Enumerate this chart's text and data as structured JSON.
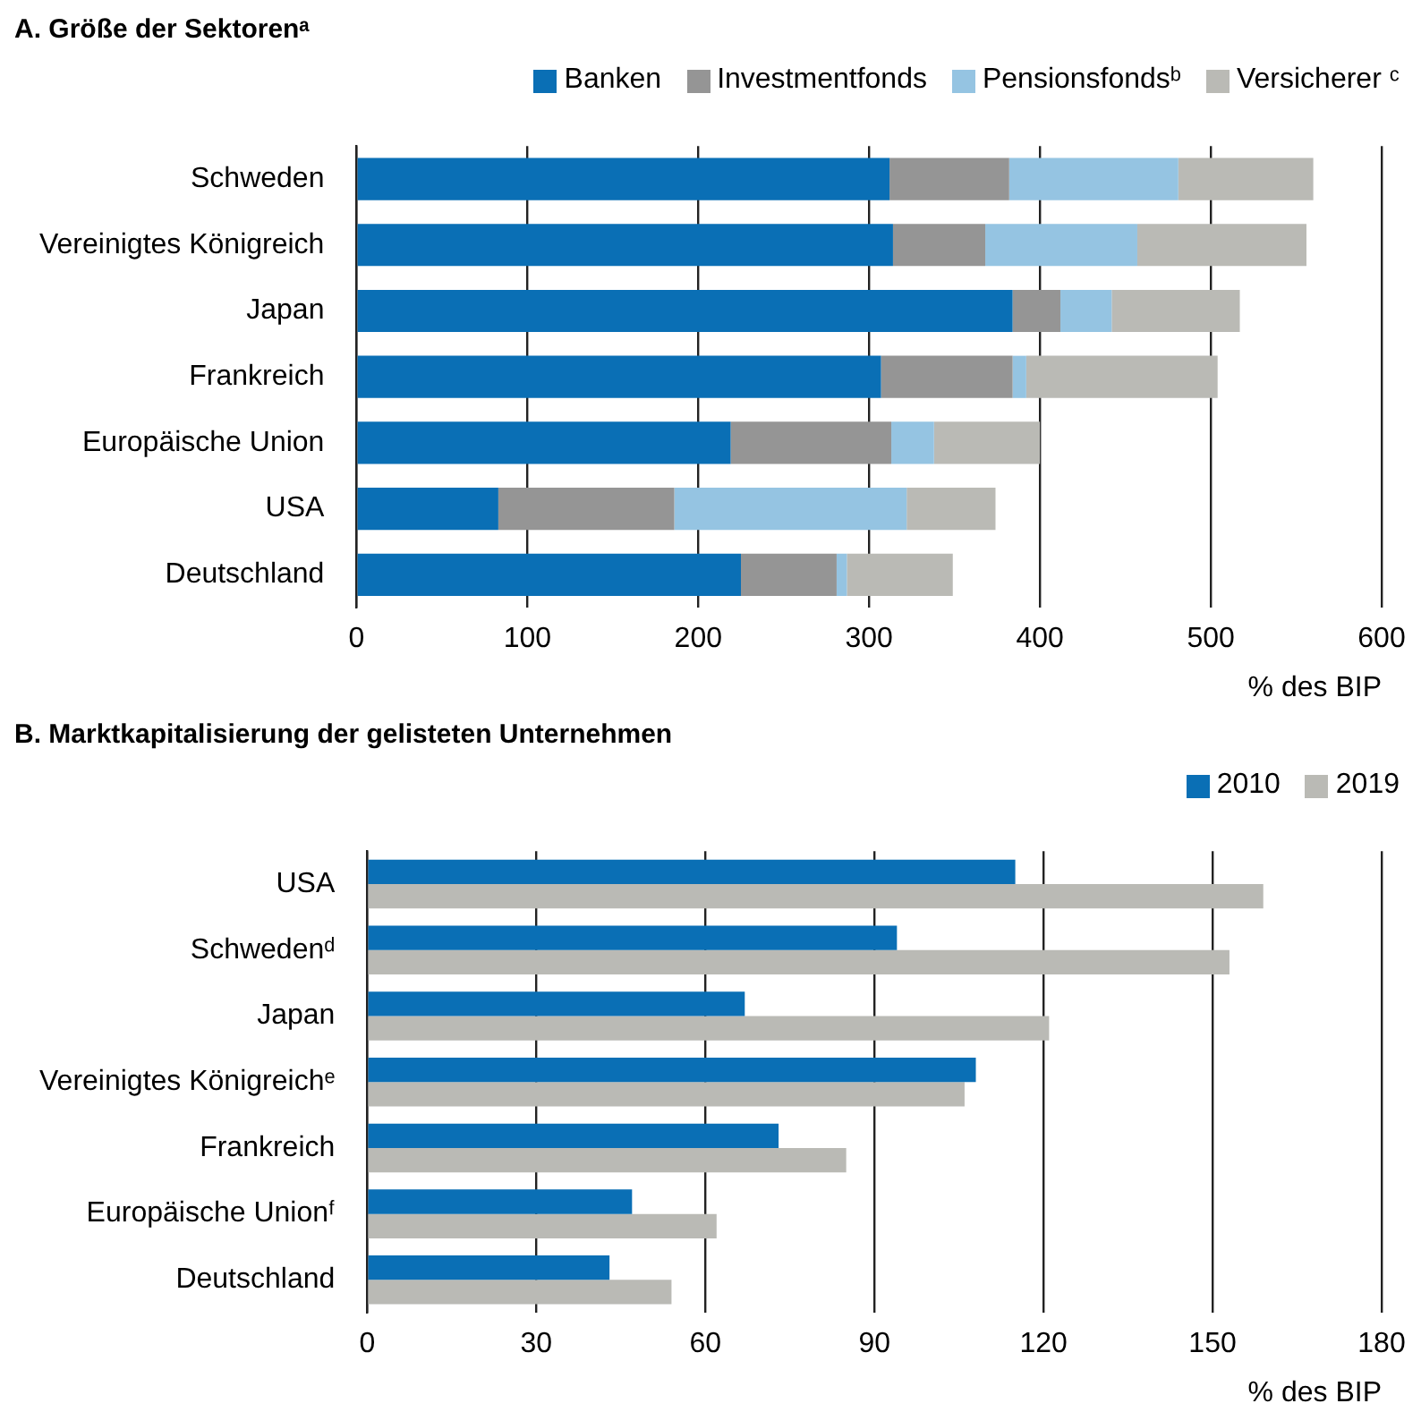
{
  "chart_data": [
    {
      "type": "bar",
      "title": "A. Größe der Sektorenᵃ",
      "orientation": "horizontal",
      "stacked": true,
      "categories": [
        "Schweden",
        "Vereinigtes Königreich",
        "Japan",
        "Frankreich",
        "Europäische Union",
        "USA",
        "Deutschland"
      ],
      "series": [
        {
          "name": "Banken",
          "color": "#0a6fb5",
          "values": [
            312,
            314,
            384,
            307,
            219,
            83,
            225
          ]
        },
        {
          "name": "Investmentfonds",
          "color": "#959595",
          "values": [
            70,
            54,
            28,
            77,
            94,
            103,
            56
          ]
        },
        {
          "name": "Pensionsfondsᵇ",
          "color": "#95c4e2",
          "values": [
            99,
            89,
            30,
            8,
            25,
            136,
            6
          ]
        },
        {
          "name": "Versicherer ᶜ",
          "color": "#babab5",
          "values": [
            79,
            99,
            75,
            112,
            62,
            52,
            62
          ]
        }
      ],
      "xlim": [
        0,
        600
      ],
      "xticks": [
        0,
        100,
        200,
        300,
        400,
        500,
        600
      ],
      "xlabel": "% des BIP",
      "grid": "x",
      "legend": "top right"
    },
    {
      "type": "bar",
      "title": "B. Marktkapitalisierung der gelisteten Unternehmen",
      "orientation": "horizontal",
      "categories": [
        "USA",
        "Schwedenᵈ",
        "Japan",
        "Vereinigtes Königreichᵉ",
        "Frankreich",
        "Europäische Unionᶠ",
        "Deutschland"
      ],
      "series": [
        {
          "name": "2010",
          "color": "#0a6fb5",
          "values": [
            115,
            94,
            67,
            108,
            73,
            47,
            43
          ]
        },
        {
          "name": "2019",
          "color": "#babab5",
          "values": [
            159,
            153,
            121,
            106,
            85,
            62,
            54
          ]
        }
      ],
      "xlim": [
        0,
        180
      ],
      "xticks": [
        0,
        30,
        60,
        90,
        120,
        150,
        180
      ],
      "xlabel": "% des BIP",
      "grid": "x",
      "legend": "top right"
    }
  ]
}
